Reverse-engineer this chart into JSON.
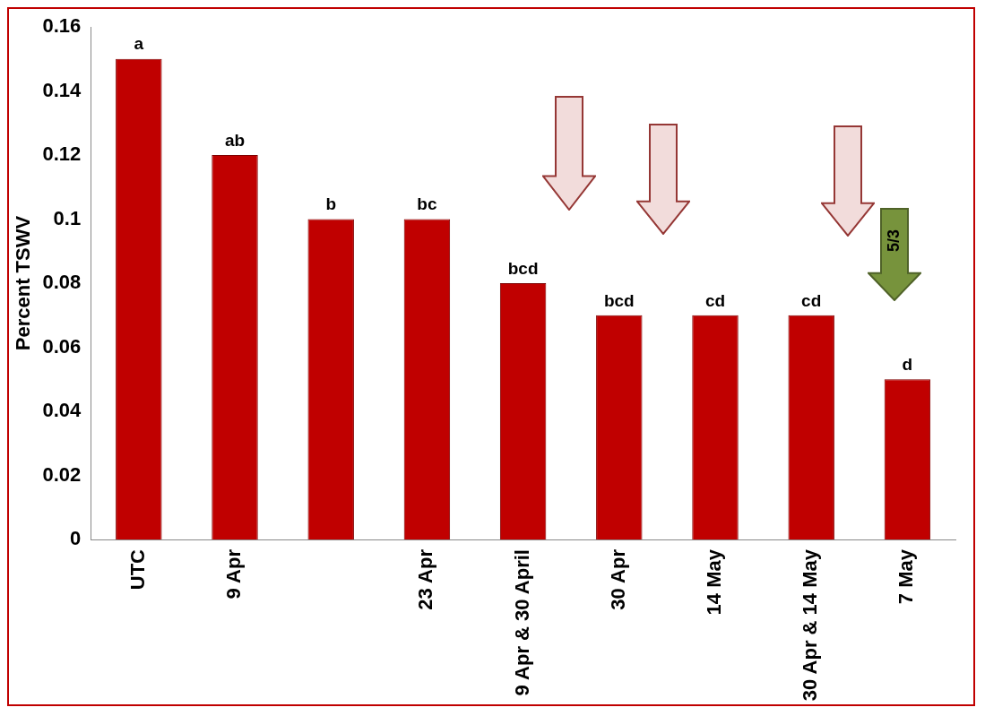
{
  "chart_data": {
    "type": "bar",
    "ylabel": "Percent TSWV",
    "categories": [
      "UTC",
      "9 Apr",
      null,
      "23 Apr",
      "9 Apr & 30 April",
      "30 Apr",
      "14 May",
      "30 Apr & 14 May",
      "7 May"
    ],
    "values": [
      0.15,
      0.12,
      0.1,
      0.1,
      0.08,
      0.07,
      0.07,
      0.07,
      0.05
    ],
    "value_labels": [
      "a",
      "ab",
      "b",
      "bc",
      "bcd",
      "bcd",
      "cd",
      "cd",
      "d"
    ],
    "color": "#c00000",
    "ylim": [
      0,
      0.16
    ],
    "yticks": [
      0,
      0.02,
      0.04,
      0.06,
      0.08,
      0.1,
      0.12,
      0.14,
      0.16
    ],
    "annotations": [
      "5/3"
    ]
  }
}
